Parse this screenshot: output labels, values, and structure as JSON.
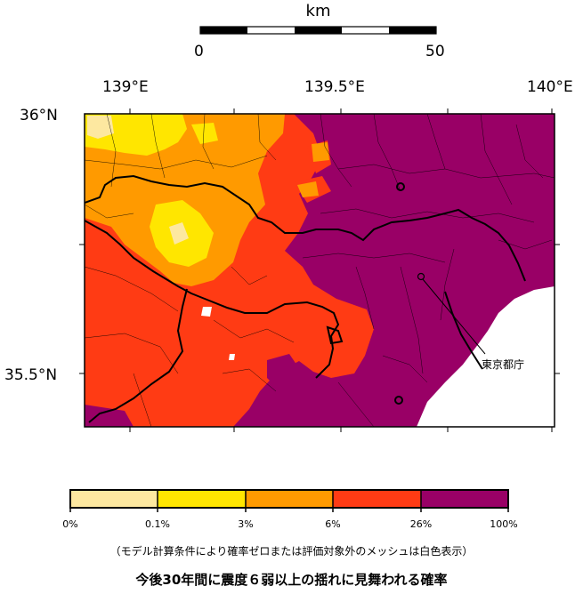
{
  "scale_bar": {
    "unit": "km",
    "start": "0",
    "end": "50"
  },
  "map": {
    "longitude_labels": [
      "139°E",
      "139.5°E",
      "140°E"
    ],
    "latitude_labels": [
      "36°N",
      "35.5°N"
    ],
    "annotation": "東京都庁",
    "colors": {
      "lowest": "#fde8a0",
      "low": "#ffe600",
      "mid": "#ff9a00",
      "high": "#ff3b14",
      "highest": "#990066",
      "sea": "#ffffff",
      "boundary": "#000000"
    }
  },
  "legend": {
    "ticks": [
      "0%",
      "0.1%",
      "3%",
      "6%",
      "26%",
      "100%"
    ],
    "classes": [
      {
        "from": "0%",
        "to": "0.1%",
        "color": "#fde8a0"
      },
      {
        "from": "0.1%",
        "to": "3%",
        "color": "#ffe600"
      },
      {
        "from": "3%",
        "to": "6%",
        "color": "#ff9a00"
      },
      {
        "from": "6%",
        "to": "26%",
        "color": "#ff3b14"
      },
      {
        "from": "26%",
        "to": "100%",
        "color": "#990066"
      }
    ]
  },
  "note": "（モデル計算条件により確率ゼロまたは評価対象外のメッシュは白色表示）",
  "caption": "今後30年間に震度６弱以上の揺れに見舞われる確率"
}
